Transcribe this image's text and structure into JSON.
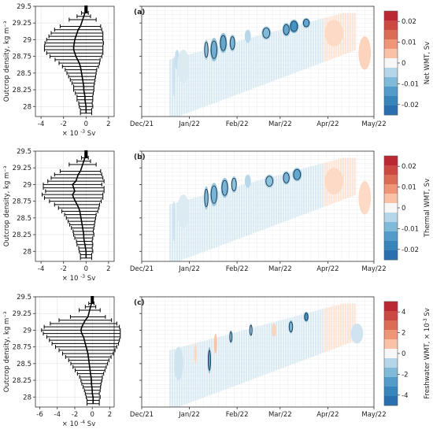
{
  "chart_data": [
    {
      "type": "line",
      "panel": "left-1",
      "ylabel": "Outcrop density, kg m⁻³",
      "xlabel_prefix": "× 10",
      "xlabel_exp": "-3",
      "xlabel_unit": "Sv",
      "xlim": [
        -4.5,
        2.5
      ],
      "ylim": [
        27.85,
        29.5
      ],
      "xticks": [
        -4,
        -2,
        0,
        2
      ],
      "xtick_labels": [
        "-4",
        "-2",
        "0",
        "2"
      ],
      "yticks": [
        28,
        28.25,
        28.5,
        28.75,
        29,
        29.25,
        29.5
      ],
      "ytick_labels": [
        "28",
        "28.25",
        "28.5",
        "28.75",
        "29",
        "29.25",
        "29.5"
      ],
      "series": [
        {
          "y": [
            29.45,
            29.4,
            29.35,
            29.3,
            29.2,
            29.15,
            29.1,
            29.05,
            29.0,
            28.95,
            28.9,
            28.85,
            28.8,
            28.75,
            28.7,
            28.65,
            28.6,
            28.55,
            28.5,
            28.45,
            28.4,
            28.35,
            28.3,
            28.25,
            28.2,
            28.15,
            28.1,
            28.05,
            28.0,
            27.95,
            27.9
          ],
          "x": [
            0.0,
            -0.1,
            -0.2,
            -0.3,
            -0.5,
            -0.7,
            -0.8,
            -0.9,
            -1.0,
            -1.05,
            -1.1,
            -1.1,
            -1.0,
            -0.9,
            -0.75,
            -0.6,
            -0.5,
            -0.45,
            -0.4,
            -0.35,
            -0.3,
            -0.25,
            -0.2,
            -0.2,
            -0.15,
            -0.1,
            -0.1,
            -0.05,
            0.0,
            0.0,
            0.0
          ],
          "err": [
            0.1,
            0.3,
            0.6,
            1.2,
            1.8,
            2.1,
            2.3,
            2.4,
            2.5,
            2.6,
            2.6,
            2.6,
            2.5,
            2.3,
            2.0,
            1.8,
            1.6,
            1.4,
            1.3,
            1.2,
            1.1,
            1.0,
            0.9,
            0.9,
            0.8,
            0.7,
            0.7,
            0.6,
            0.6,
            0.5,
            0.5
          ]
        }
      ]
    },
    {
      "type": "line",
      "panel": "left-2",
      "ylabel": "Outcrop density, kg m⁻³",
      "xlabel_prefix": "× 10",
      "xlabel_exp": "-3",
      "xlabel_unit": "Sv",
      "xlim": [
        -4.5,
        2.5
      ],
      "ylim": [
        27.85,
        29.5
      ],
      "xticks": [
        -4,
        -2,
        0,
        2
      ],
      "xtick_labels": [
        "-4",
        "-2",
        "0",
        "2"
      ],
      "yticks": [
        28,
        28.25,
        28.5,
        28.75,
        29,
        29.25,
        29.5
      ],
      "ytick_labels": [
        "28",
        "28.25",
        "28.5",
        "28.75",
        "29",
        "29.25",
        "29.5"
      ],
      "series": [
        {
          "y": [
            29.45,
            29.4,
            29.35,
            29.3,
            29.2,
            29.15,
            29.1,
            29.05,
            29.0,
            28.95,
            28.9,
            28.85,
            28.8,
            28.75,
            28.7,
            28.65,
            28.6,
            28.55,
            28.5,
            28.45,
            28.4,
            28.35,
            28.3,
            28.25,
            28.2,
            28.15,
            28.1,
            28.05,
            28.0,
            27.95,
            27.9
          ],
          "x": [
            0.0,
            -0.1,
            -0.2,
            -0.3,
            -0.5,
            -0.7,
            -0.8,
            -0.9,
            -1.2,
            -1.1,
            -1.0,
            -1.2,
            -1.1,
            -0.95,
            -0.8,
            -0.65,
            -0.55,
            -0.5,
            -0.45,
            -0.4,
            -0.35,
            -0.3,
            -0.25,
            -0.2,
            -0.2,
            -0.15,
            -0.1,
            -0.05,
            0.0,
            0.0,
            0.0
          ],
          "err": [
            0.1,
            0.3,
            0.6,
            1.2,
            1.8,
            2.1,
            2.3,
            2.5,
            2.6,
            2.7,
            2.6,
            2.7,
            2.6,
            2.3,
            2.0,
            1.8,
            1.6,
            1.4,
            1.3,
            1.2,
            1.1,
            1.0,
            0.9,
            0.9,
            0.8,
            0.7,
            0.7,
            0.6,
            0.6,
            0.5,
            0.5
          ]
        }
      ]
    },
    {
      "type": "line",
      "panel": "left-3",
      "ylabel": "Outcrop density, kg m⁻³",
      "xlabel_prefix": "× 10",
      "xlabel_exp": "-4",
      "xlabel_unit": "Sv",
      "xlim": [
        -6.5,
        2.5
      ],
      "ylim": [
        27.85,
        29.5
      ],
      "xticks": [
        -6,
        -4,
        -2,
        0,
        2
      ],
      "xtick_labels": [
        "-6",
        "-4",
        "-2",
        "0",
        "2"
      ],
      "yticks": [
        28,
        28.25,
        28.5,
        28.75,
        29,
        29.25,
        29.5
      ],
      "ytick_labels": [
        "28",
        "28.25",
        "28.5",
        "28.75",
        "29",
        "29.25",
        "29.5"
      ],
      "series": [
        {
          "y": [
            29.45,
            29.4,
            29.35,
            29.3,
            29.2,
            29.15,
            29.1,
            29.05,
            29.0,
            28.95,
            28.9,
            28.85,
            28.8,
            28.75,
            28.7,
            28.65,
            28.6,
            28.55,
            28.5,
            28.45,
            28.4,
            28.35,
            28.3,
            28.25,
            28.2,
            28.15,
            28.1,
            28.05,
            28.0,
            27.95,
            27.9
          ],
          "x": [
            0.0,
            -0.1,
            -0.2,
            -0.3,
            -0.5,
            -0.8,
            -1.0,
            -1.2,
            -1.3,
            -1.2,
            -1.0,
            -0.9,
            -0.8,
            -0.7,
            -0.6,
            -0.5,
            -0.45,
            -0.4,
            -0.35,
            -0.3,
            -0.25,
            -0.2,
            -0.15,
            -0.1,
            -0.1,
            -0.05,
            0.0,
            0.0,
            0.1,
            0.1,
            0.1
          ],
          "err": [
            0.1,
            0.3,
            0.6,
            1.2,
            2.0,
            3.0,
            3.8,
            4.3,
            4.5,
            4.4,
            4.2,
            4.0,
            3.8,
            3.5,
            3.2,
            2.9,
            2.6,
            2.3,
            2.1,
            1.9,
            1.7,
            1.5,
            1.3,
            1.2,
            1.1,
            1.0,
            0.9,
            0.8,
            0.8,
            0.7,
            0.7
          ]
        }
      ]
    },
    {
      "type": "heatmap",
      "panel": "right-1",
      "panel_label": "(a)",
      "colorbar_label": "Net WMT, Sv",
      "colorbar_ticks": [
        0.02,
        0.01,
        0,
        -0.01,
        -0.02
      ],
      "colorbar_tick_labels": [
        "0.02",
        "0.01",
        "0",
        "-0.01",
        "-0.02"
      ],
      "clim": [
        -0.025,
        0.025
      ],
      "xticks": [
        "Dec/21",
        "Jan/22",
        "Feb/22",
        "Mar/22",
        "Apr/22",
        "May/22"
      ],
      "ylim": [
        27.85,
        29.5
      ],
      "features": [
        {
          "date": "2021-12-22",
          "rho": 28.45,
          "v": -0.003,
          "w": 2,
          "h": 0.6
        },
        {
          "date": "2021-12-24",
          "rho": 28.7,
          "v": -0.004,
          "w": 3,
          "h": 0.3
        },
        {
          "date": "2021-12-28",
          "rho": 28.6,
          "v": -0.002,
          "w": 8,
          "h": 0.5
        },
        {
          "date": "2022-01-12",
          "rho": 28.85,
          "v": -0.008,
          "w": 3,
          "h": 0.3
        },
        {
          "date": "2022-01-17",
          "rho": 28.85,
          "v": -0.011,
          "w": 5,
          "h": 0.35
        },
        {
          "date": "2022-01-23",
          "rho": 28.95,
          "v": -0.012,
          "w": 5,
          "h": 0.3
        },
        {
          "date": "2022-01-29",
          "rho": 28.95,
          "v": -0.01,
          "w": 4,
          "h": 0.25
        },
        {
          "date": "2022-02-08",
          "rho": 29.05,
          "v": -0.006,
          "w": 4,
          "h": 0.2
        },
        {
          "date": "2022-02-20",
          "rho": 29.1,
          "v": -0.009,
          "w": 6,
          "h": 0.2
        },
        {
          "date": "2022-03-05",
          "rho": 29.15,
          "v": -0.012,
          "w": 5,
          "h": 0.2
        },
        {
          "date": "2022-03-10",
          "rho": 29.2,
          "v": -0.015,
          "w": 6,
          "h": 0.2
        },
        {
          "date": "2022-03-18",
          "rho": 29.25,
          "v": -0.012,
          "w": 5,
          "h": 0.15
        },
        {
          "date": "2022-04-05",
          "rho": 29.1,
          "v": 0.003,
          "w": 12,
          "h": 0.4
        },
        {
          "date": "2022-04-25",
          "rho": 28.8,
          "v": 0.004,
          "w": 8,
          "h": 0.5
        }
      ]
    },
    {
      "type": "heatmap",
      "panel": "right-2",
      "panel_label": "(b)",
      "colorbar_label": "Thermal WMT, Sv",
      "colorbar_ticks": [
        0.02,
        0.01,
        0,
        -0.01,
        -0.02
      ],
      "colorbar_tick_labels": [
        "0.02",
        "0.01",
        "0",
        "-0.01",
        "-0.02"
      ],
      "clim": [
        -0.025,
        0.025
      ],
      "xticks": [
        "Dec/21",
        "Jan/22",
        "Feb/22",
        "Mar/22",
        "Apr/22",
        "May/22"
      ],
      "ylim": [
        27.85,
        29.5
      ],
      "features": [
        {
          "date": "2021-12-22",
          "rho": 28.45,
          "v": -0.003,
          "w": 2,
          "h": 0.6
        },
        {
          "date": "2021-12-28",
          "rho": 28.6,
          "v": -0.002,
          "w": 8,
          "h": 0.5
        },
        {
          "date": "2022-01-12",
          "rho": 28.8,
          "v": -0.009,
          "w": 3,
          "h": 0.35
        },
        {
          "date": "2022-01-17",
          "rho": 28.85,
          "v": -0.01,
          "w": 5,
          "h": 0.35
        },
        {
          "date": "2022-01-24",
          "rho": 28.95,
          "v": -0.01,
          "w": 5,
          "h": 0.3
        },
        {
          "date": "2022-01-30",
          "rho": 29.0,
          "v": -0.008,
          "w": 4,
          "h": 0.25
        },
        {
          "date": "2022-02-08",
          "rho": 29.05,
          "v": -0.006,
          "w": 4,
          "h": 0.2
        },
        {
          "date": "2022-02-22",
          "rho": 29.05,
          "v": -0.008,
          "w": 6,
          "h": 0.2
        },
        {
          "date": "2022-03-05",
          "rho": 29.1,
          "v": -0.01,
          "w": 5,
          "h": 0.2
        },
        {
          "date": "2022-03-12",
          "rho": 29.15,
          "v": -0.012,
          "w": 6,
          "h": 0.2
        },
        {
          "date": "2022-04-05",
          "rho": 29.05,
          "v": 0.003,
          "w": 12,
          "h": 0.4
        },
        {
          "date": "2022-04-25",
          "rho": 28.8,
          "v": 0.003,
          "w": 8,
          "h": 0.5
        }
      ]
    },
    {
      "type": "heatmap",
      "panel": "right-3",
      "panel_label": "(c)",
      "colorbar_label_prefix": "Freshwater WMT, × 10",
      "colorbar_label_exp": "-3",
      "colorbar_label_unit": "Sv",
      "colorbar_ticks": [
        4,
        2,
        0,
        -2,
        -4
      ],
      "colorbar_tick_labels": [
        "4",
        "2",
        "0",
        "-2",
        "-4"
      ],
      "clim": [
        -5,
        5
      ],
      "xticks": [
        "Dec/21",
        "Jan/22",
        "Feb/22",
        "Mar/22",
        "Apr/22",
        "May/22"
      ],
      "ylim": [
        27.85,
        29.5
      ],
      "features": [
        {
          "date": "2021-12-25",
          "rho": 28.5,
          "v": -0.6,
          "w": 6,
          "h": 0.5
        },
        {
          "date": "2022-01-05",
          "rho": 28.65,
          "v": 0.8,
          "w": 1,
          "h": 0.3
        },
        {
          "date": "2022-01-14",
          "rho": 28.55,
          "v": -2.5,
          "w": 2,
          "h": 0.4
        },
        {
          "date": "2022-01-18",
          "rho": 28.8,
          "v": 1.2,
          "w": 2,
          "h": 0.3
        },
        {
          "date": "2022-01-28",
          "rho": 28.9,
          "v": -1.8,
          "w": 2,
          "h": 0.2
        },
        {
          "date": "2022-02-10",
          "rho": 29.0,
          "v": -1.5,
          "w": 2,
          "h": 0.2
        },
        {
          "date": "2022-02-25",
          "rho": 29.0,
          "v": 0.8,
          "w": 3,
          "h": 0.2
        },
        {
          "date": "2022-03-08",
          "rho": 29.05,
          "v": -2.0,
          "w": 3,
          "h": 0.2
        },
        {
          "date": "2022-03-18",
          "rho": 29.2,
          "v": -3.0,
          "w": 3,
          "h": 0.15
        },
        {
          "date": "2022-04-20",
          "rho": 28.95,
          "v": -0.6,
          "w": 8,
          "h": 0.3
        }
      ]
    }
  ]
}
